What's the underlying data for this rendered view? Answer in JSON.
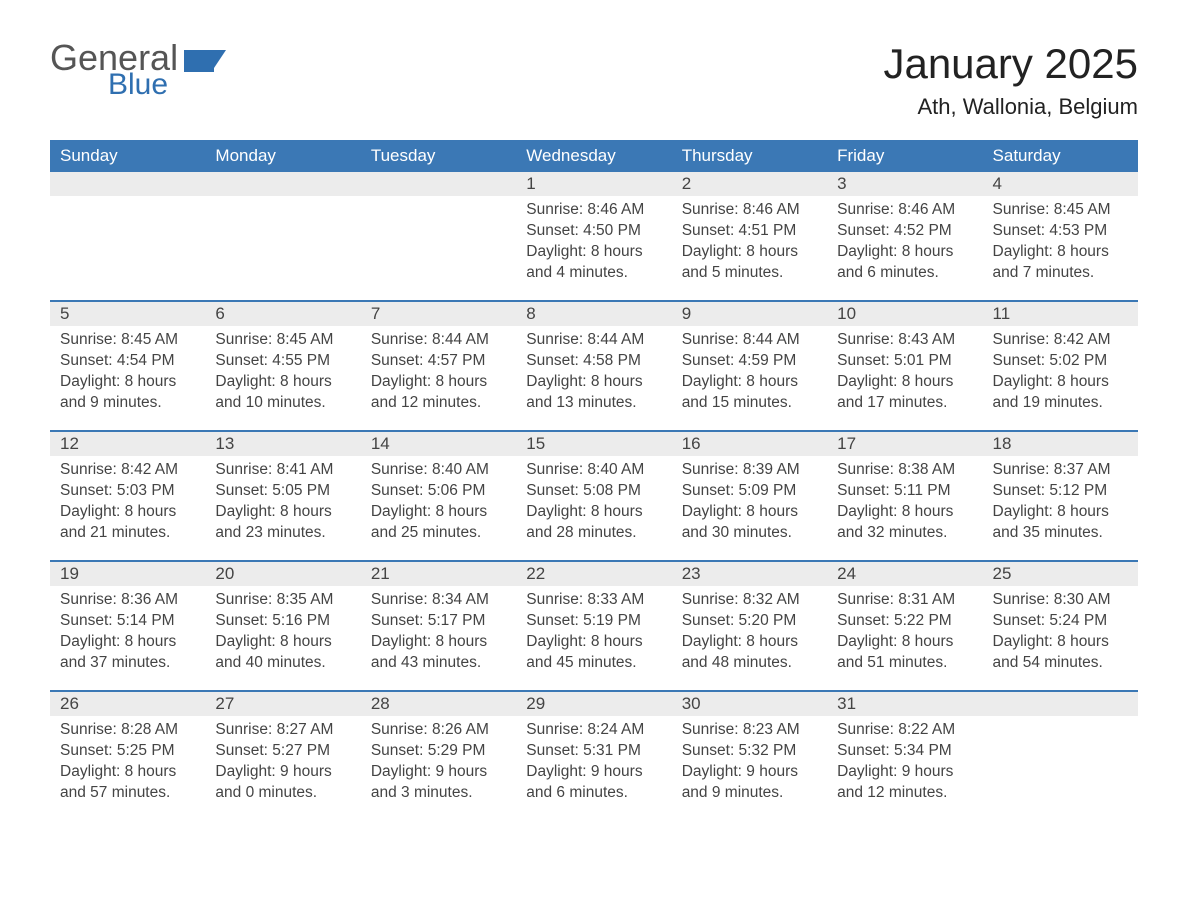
{
  "logo": {
    "general": "General",
    "blue": "Blue",
    "shape_color": "#2f6fb0",
    "general_color": "#555555",
    "blue_color": "#2f6fb0"
  },
  "title": "January 2025",
  "location": "Ath, Wallonia, Belgium",
  "colors": {
    "header_bg": "#3b78b5",
    "header_text": "#ffffff",
    "dayhead_bg": "#ececec",
    "text": "#444444",
    "week_border": "#3b78b5",
    "page_bg": "#ffffff"
  },
  "day_headers": [
    "Sunday",
    "Monday",
    "Tuesday",
    "Wednesday",
    "Thursday",
    "Friday",
    "Saturday"
  ],
  "weeks": [
    [
      null,
      null,
      null,
      {
        "n": "1",
        "sunrise": "Sunrise: 8:46 AM",
        "sunset": "Sunset: 4:50 PM",
        "dl1": "Daylight: 8 hours",
        "dl2": "and 4 minutes."
      },
      {
        "n": "2",
        "sunrise": "Sunrise: 8:46 AM",
        "sunset": "Sunset: 4:51 PM",
        "dl1": "Daylight: 8 hours",
        "dl2": "and 5 minutes."
      },
      {
        "n": "3",
        "sunrise": "Sunrise: 8:46 AM",
        "sunset": "Sunset: 4:52 PM",
        "dl1": "Daylight: 8 hours",
        "dl2": "and 6 minutes."
      },
      {
        "n": "4",
        "sunrise": "Sunrise: 8:45 AM",
        "sunset": "Sunset: 4:53 PM",
        "dl1": "Daylight: 8 hours",
        "dl2": "and 7 minutes."
      }
    ],
    [
      {
        "n": "5",
        "sunrise": "Sunrise: 8:45 AM",
        "sunset": "Sunset: 4:54 PM",
        "dl1": "Daylight: 8 hours",
        "dl2": "and 9 minutes."
      },
      {
        "n": "6",
        "sunrise": "Sunrise: 8:45 AM",
        "sunset": "Sunset: 4:55 PM",
        "dl1": "Daylight: 8 hours",
        "dl2": "and 10 minutes."
      },
      {
        "n": "7",
        "sunrise": "Sunrise: 8:44 AM",
        "sunset": "Sunset: 4:57 PM",
        "dl1": "Daylight: 8 hours",
        "dl2": "and 12 minutes."
      },
      {
        "n": "8",
        "sunrise": "Sunrise: 8:44 AM",
        "sunset": "Sunset: 4:58 PM",
        "dl1": "Daylight: 8 hours",
        "dl2": "and 13 minutes."
      },
      {
        "n": "9",
        "sunrise": "Sunrise: 8:44 AM",
        "sunset": "Sunset: 4:59 PM",
        "dl1": "Daylight: 8 hours",
        "dl2": "and 15 minutes."
      },
      {
        "n": "10",
        "sunrise": "Sunrise: 8:43 AM",
        "sunset": "Sunset: 5:01 PM",
        "dl1": "Daylight: 8 hours",
        "dl2": "and 17 minutes."
      },
      {
        "n": "11",
        "sunrise": "Sunrise: 8:42 AM",
        "sunset": "Sunset: 5:02 PM",
        "dl1": "Daylight: 8 hours",
        "dl2": "and 19 minutes."
      }
    ],
    [
      {
        "n": "12",
        "sunrise": "Sunrise: 8:42 AM",
        "sunset": "Sunset: 5:03 PM",
        "dl1": "Daylight: 8 hours",
        "dl2": "and 21 minutes."
      },
      {
        "n": "13",
        "sunrise": "Sunrise: 8:41 AM",
        "sunset": "Sunset: 5:05 PM",
        "dl1": "Daylight: 8 hours",
        "dl2": "and 23 minutes."
      },
      {
        "n": "14",
        "sunrise": "Sunrise: 8:40 AM",
        "sunset": "Sunset: 5:06 PM",
        "dl1": "Daylight: 8 hours",
        "dl2": "and 25 minutes."
      },
      {
        "n": "15",
        "sunrise": "Sunrise: 8:40 AM",
        "sunset": "Sunset: 5:08 PM",
        "dl1": "Daylight: 8 hours",
        "dl2": "and 28 minutes."
      },
      {
        "n": "16",
        "sunrise": "Sunrise: 8:39 AM",
        "sunset": "Sunset: 5:09 PM",
        "dl1": "Daylight: 8 hours",
        "dl2": "and 30 minutes."
      },
      {
        "n": "17",
        "sunrise": "Sunrise: 8:38 AM",
        "sunset": "Sunset: 5:11 PM",
        "dl1": "Daylight: 8 hours",
        "dl2": "and 32 minutes."
      },
      {
        "n": "18",
        "sunrise": "Sunrise: 8:37 AM",
        "sunset": "Sunset: 5:12 PM",
        "dl1": "Daylight: 8 hours",
        "dl2": "and 35 minutes."
      }
    ],
    [
      {
        "n": "19",
        "sunrise": "Sunrise: 8:36 AM",
        "sunset": "Sunset: 5:14 PM",
        "dl1": "Daylight: 8 hours",
        "dl2": "and 37 minutes."
      },
      {
        "n": "20",
        "sunrise": "Sunrise: 8:35 AM",
        "sunset": "Sunset: 5:16 PM",
        "dl1": "Daylight: 8 hours",
        "dl2": "and 40 minutes."
      },
      {
        "n": "21",
        "sunrise": "Sunrise: 8:34 AM",
        "sunset": "Sunset: 5:17 PM",
        "dl1": "Daylight: 8 hours",
        "dl2": "and 43 minutes."
      },
      {
        "n": "22",
        "sunrise": "Sunrise: 8:33 AM",
        "sunset": "Sunset: 5:19 PM",
        "dl1": "Daylight: 8 hours",
        "dl2": "and 45 minutes."
      },
      {
        "n": "23",
        "sunrise": "Sunrise: 8:32 AM",
        "sunset": "Sunset: 5:20 PM",
        "dl1": "Daylight: 8 hours",
        "dl2": "and 48 minutes."
      },
      {
        "n": "24",
        "sunrise": "Sunrise: 8:31 AM",
        "sunset": "Sunset: 5:22 PM",
        "dl1": "Daylight: 8 hours",
        "dl2": "and 51 minutes."
      },
      {
        "n": "25",
        "sunrise": "Sunrise: 8:30 AM",
        "sunset": "Sunset: 5:24 PM",
        "dl1": "Daylight: 8 hours",
        "dl2": "and 54 minutes."
      }
    ],
    [
      {
        "n": "26",
        "sunrise": "Sunrise: 8:28 AM",
        "sunset": "Sunset: 5:25 PM",
        "dl1": "Daylight: 8 hours",
        "dl2": "and 57 minutes."
      },
      {
        "n": "27",
        "sunrise": "Sunrise: 8:27 AM",
        "sunset": "Sunset: 5:27 PM",
        "dl1": "Daylight: 9 hours",
        "dl2": "and 0 minutes."
      },
      {
        "n": "28",
        "sunrise": "Sunrise: 8:26 AM",
        "sunset": "Sunset: 5:29 PM",
        "dl1": "Daylight: 9 hours",
        "dl2": "and 3 minutes."
      },
      {
        "n": "29",
        "sunrise": "Sunrise: 8:24 AM",
        "sunset": "Sunset: 5:31 PM",
        "dl1": "Daylight: 9 hours",
        "dl2": "and 6 minutes."
      },
      {
        "n": "30",
        "sunrise": "Sunrise: 8:23 AM",
        "sunset": "Sunset: 5:32 PM",
        "dl1": "Daylight: 9 hours",
        "dl2": "and 9 minutes."
      },
      {
        "n": "31",
        "sunrise": "Sunrise: 8:22 AM",
        "sunset": "Sunset: 5:34 PM",
        "dl1": "Daylight: 9 hours",
        "dl2": "and 12 minutes."
      },
      null
    ]
  ]
}
